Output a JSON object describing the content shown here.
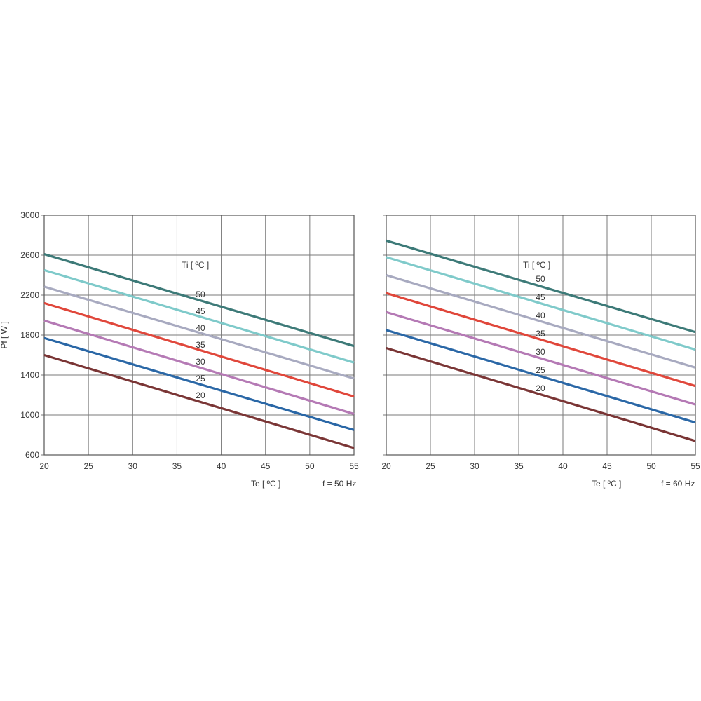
{
  "chart_data": [
    {
      "type": "line",
      "ylabel": "Pf  [ W ]",
      "xlabel": "Te  [ ºC ]",
      "freq_label": "f = 50 Hz",
      "legend_title": "Ti  [ ºC ]",
      "xlim": [
        20,
        55
      ],
      "ylim": [
        600,
        3000
      ],
      "x_ticks": [
        "20",
        "25",
        "30",
        "35",
        "40",
        "45",
        "50",
        "55"
      ],
      "y_ticks": [
        "600",
        "1000",
        "1400",
        "1800",
        "2200",
        "2600",
        "3000"
      ],
      "grid": true,
      "series": [
        {
          "name": "50",
          "color": "#3d7a78",
          "x": [
            20,
            55
          ],
          "y": [
            2610,
            1690
          ]
        },
        {
          "name": "45",
          "color": "#7fcaca",
          "x": [
            20,
            55
          ],
          "y": [
            2450,
            1525
          ]
        },
        {
          "name": "40",
          "color": "#a8aac0",
          "x": [
            20,
            55
          ],
          "y": [
            2285,
            1365
          ]
        },
        {
          "name": "35",
          "color": "#e0473b",
          "x": [
            20,
            55
          ],
          "y": [
            2120,
            1185
          ]
        },
        {
          "name": "30",
          "color": "#b57ab5",
          "x": [
            20,
            55
          ],
          "y": [
            1945,
            1010
          ]
        },
        {
          "name": "25",
          "color": "#2a67a6",
          "x": [
            20,
            55
          ],
          "y": [
            1770,
            850
          ]
        },
        {
          "name": "20",
          "color": "#7a3535",
          "x": [
            20,
            55
          ],
          "y": [
            1600,
            670
          ]
        }
      ]
    },
    {
      "type": "line",
      "xlabel": "Te  [ ºC ]",
      "freq_label": "f = 60 Hz",
      "legend_title": "Ti  [ ºC ]",
      "xlim": [
        20,
        55
      ],
      "ylim": [
        600,
        3000
      ],
      "x_ticks": [
        "20",
        "25",
        "30",
        "35",
        "40",
        "45",
        "50",
        "55"
      ],
      "y_ticks": [],
      "grid": true,
      "series": [
        {
          "name": "50",
          "color": "#3d7a78",
          "x": [
            20,
            55
          ],
          "y": [
            2745,
            1830
          ]
        },
        {
          "name": "45",
          "color": "#7fcaca",
          "x": [
            20,
            55
          ],
          "y": [
            2580,
            1655
          ]
        },
        {
          "name": "40",
          "color": "#a8aac0",
          "x": [
            20,
            55
          ],
          "y": [
            2400,
            1475
          ]
        },
        {
          "name": "35",
          "color": "#e0473b",
          "x": [
            20,
            55
          ],
          "y": [
            2220,
            1290
          ]
        },
        {
          "name": "30",
          "color": "#b57ab5",
          "x": [
            20,
            55
          ],
          "y": [
            2030,
            1105
          ]
        },
        {
          "name": "25",
          "color": "#2a67a6",
          "x": [
            20,
            55
          ],
          "y": [
            1850,
            925
          ]
        },
        {
          "name": "20",
          "color": "#7a3535",
          "x": [
            20,
            55
          ],
          "y": [
            1670,
            740
          ]
        }
      ]
    }
  ]
}
